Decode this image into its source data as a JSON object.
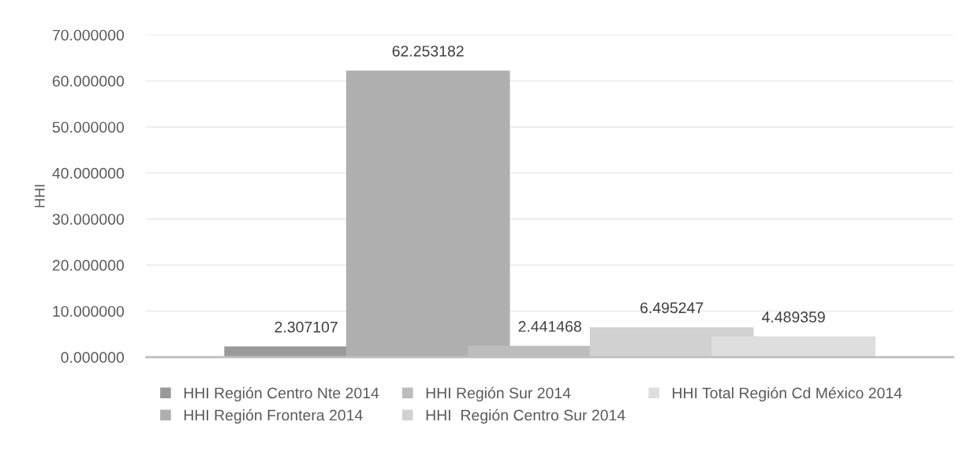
{
  "chart_data": {
    "type": "bar",
    "ylabel": "HHI",
    "categories": [
      null
    ],
    "series": [
      {
        "name": "HHI Región Centro Nte 2014",
        "color": "#9a9a9a",
        "values": [
          2.307107
        ]
      },
      {
        "name": "HHI Región Frontera 2014",
        "color": "#afafaf",
        "values": [
          62.253182
        ]
      },
      {
        "name": "HHI Región Sur 2014",
        "color": "#bdbdbd",
        "values": [
          2.441468
        ]
      },
      {
        "name": "HHI  Región Centro Sur 2014",
        "color": "#d1d1d1",
        "values": [
          6.495247
        ]
      },
      {
        "name": "HHI Total Región Cd México 2014",
        "color": "#dedede",
        "values": [
          4.489359
        ]
      }
    ],
    "ylim": [
      0,
      70
    ],
    "yticks": [
      {
        "value": 0,
        "label": "0.000000"
      },
      {
        "value": 10,
        "label": "10.000000"
      },
      {
        "value": 20,
        "label": "20.000000"
      },
      {
        "value": 30,
        "label": "30.000000"
      },
      {
        "value": 40,
        "label": "40.000000"
      },
      {
        "value": 50,
        "label": "50.000000"
      },
      {
        "value": 60,
        "label": "60.000000"
      },
      {
        "value": 70,
        "label": "70.000000"
      }
    ],
    "grid": "y",
    "legend": "bottom",
    "data_labels": true
  }
}
